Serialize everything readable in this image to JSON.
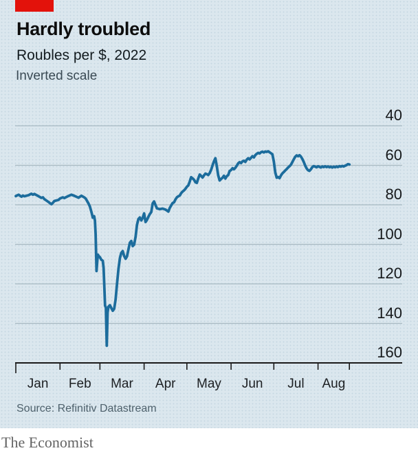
{
  "header": {
    "title": "Hardly troubled",
    "subtitle": "Roubles per $, 2022",
    "note": "Inverted scale"
  },
  "footer": {
    "source": "Source: Refinitiv Datastream",
    "brand": "The Economist"
  },
  "colors": {
    "accent_red": "#e3120b",
    "background": "#dbe7ee",
    "line": "#1c6c9c",
    "grid": "#a7b8c1",
    "axis": "#1a1a1a",
    "text_dark": "#0d0d0d",
    "text_gray": "#4e616c"
  },
  "chart_data": {
    "type": "line",
    "title": "Hardly troubled",
    "subtitle": "Roubles per $, 2022",
    "note": "Inverted scale",
    "unit": "Roubles per $",
    "grid": "horizontal",
    "legend": "none",
    "y_axis": {
      "ticks": [
        40,
        60,
        80,
        100,
        120,
        140,
        160
      ],
      "range": [
        40,
        160
      ],
      "inverted": true
    },
    "x_axis": {
      "year": 2022,
      "months": [
        "Jan",
        "Feb",
        "Mar",
        "Apr",
        "May",
        "Jun",
        "Jul",
        "Aug"
      ],
      "month_start_days": [
        1,
        32,
        60,
        91,
        121,
        152,
        182,
        213
      ],
      "end_day": 235
    },
    "series": [
      {
        "name": "Roubles per $",
        "color": "#1c6c9c",
        "points": [
          [
            1,
            75.6
          ],
          [
            2,
            75.2
          ],
          [
            3,
            74.9
          ],
          [
            4,
            75.4
          ],
          [
            5,
            75.9
          ],
          [
            6,
            75.3
          ],
          [
            7,
            75.7
          ],
          [
            10,
            75.1
          ],
          [
            11,
            74.7
          ],
          [
            12,
            74.4
          ],
          [
            13,
            74.9
          ],
          [
            14,
            74.5
          ],
          [
            17,
            75.7
          ],
          [
            18,
            76.1
          ],
          [
            19,
            76.5
          ],
          [
            20,
            76.2
          ],
          [
            21,
            77.1
          ],
          [
            24,
            78.6
          ],
          [
            25,
            79.2
          ],
          [
            26,
            79.7
          ],
          [
            27,
            79.0
          ],
          [
            28,
            78.1
          ],
          [
            31,
            77.5
          ],
          [
            32,
            76.8
          ],
          [
            34,
            76.2
          ],
          [
            35,
            76.6
          ],
          [
            38,
            75.5
          ],
          [
            40,
            74.9
          ],
          [
            42,
            75.4
          ],
          [
            45,
            76.4
          ],
          [
            46,
            75.9
          ],
          [
            47,
            75.4
          ],
          [
            49,
            76.2
          ],
          [
            50,
            76.8
          ],
          [
            52,
            79.3
          ],
          [
            53,
            80.9
          ],
          [
            54,
            83.5
          ],
          [
            55,
            86.5
          ],
          [
            56,
            85.8
          ],
          [
            56.5,
            88.0
          ],
          [
            57,
            95.0
          ],
          [
            57.6,
            113.5
          ],
          [
            58.2,
            108.0
          ],
          [
            58.6,
            105.2
          ],
          [
            59,
            105.8
          ],
          [
            60,
            106.5
          ],
          [
            61,
            107.8
          ],
          [
            62,
            108.3
          ],
          [
            62.6,
            112.0
          ],
          [
            63,
            120.0
          ],
          [
            63.6,
            131.0
          ],
          [
            64.2,
            132.0
          ],
          [
            64.8,
            151.3
          ],
          [
            65.4,
            134.5
          ],
          [
            66,
            131.5
          ],
          [
            67,
            130.8
          ],
          [
            68,
            132.2
          ],
          [
            69,
            133.6
          ],
          [
            70,
            132.6
          ],
          [
            71,
            128.0
          ],
          [
            72,
            120.0
          ],
          [
            73,
            112.5
          ],
          [
            74,
            107.0
          ],
          [
            75,
            104.3
          ],
          [
            76,
            103.4
          ],
          [
            77,
            105.9
          ],
          [
            78,
            107.3
          ],
          [
            79,
            106.1
          ],
          [
            80,
            102.6
          ],
          [
            81,
            99.2
          ],
          [
            82,
            98.3
          ],
          [
            83,
            100.9
          ],
          [
            84,
            100.1
          ],
          [
            85,
            96.2
          ],
          [
            86,
            90.2
          ],
          [
            87,
            87.2
          ],
          [
            88,
            86.4
          ],
          [
            89,
            87.9
          ],
          [
            90,
            86.6
          ],
          [
            91,
            84.3
          ],
          [
            92,
            88.7
          ],
          [
            93,
            87.6
          ],
          [
            94,
            86.1
          ],
          [
            95,
            84.7
          ],
          [
            96,
            83.7
          ],
          [
            97,
            79.3
          ],
          [
            98,
            78.3
          ],
          [
            99,
            80.1
          ],
          [
            100,
            81.8
          ],
          [
            102,
            82.2
          ],
          [
            104,
            81.9
          ],
          [
            106,
            82.4
          ],
          [
            108,
            83.4
          ],
          [
            109,
            81.6
          ],
          [
            110,
            80.3
          ],
          [
            111,
            79.1
          ],
          [
            112,
            78.7
          ],
          [
            113,
            77.3
          ],
          [
            114,
            76.2
          ],
          [
            115,
            75.7
          ],
          [
            116,
            75.3
          ],
          [
            117,
            74.1
          ],
          [
            118,
            73.3
          ],
          [
            119,
            72.7
          ],
          [
            120,
            71.9
          ],
          [
            121,
            70.9
          ],
          [
            122,
            70.2
          ],
          [
            123,
            68.2
          ],
          [
            124,
            66.0
          ],
          [
            125,
            66.6
          ],
          [
            126,
            67.3
          ],
          [
            127,
            68.6
          ],
          [
            128,
            68.9
          ],
          [
            129,
            66.6
          ],
          [
            130,
            64.7
          ],
          [
            131,
            65.4
          ],
          [
            132,
            66.2
          ],
          [
            133,
            65.1
          ],
          [
            134,
            64.2
          ],
          [
            135,
            64.5
          ],
          [
            136,
            64.9
          ],
          [
            137,
            63.9
          ],
          [
            138,
            62.3
          ],
          [
            139,
            60.1
          ],
          [
            140,
            58.0
          ],
          [
            141,
            56.4
          ],
          [
            142,
            60.6
          ],
          [
            143,
            65.1
          ],
          [
            144,
            67.7
          ],
          [
            145,
            66.9
          ],
          [
            146,
            66.3
          ],
          [
            147,
            65.3
          ],
          [
            148,
            66.7
          ],
          [
            149,
            65.5
          ],
          [
            150,
            64.9
          ],
          [
            151,
            62.9
          ],
          [
            152,
            62.4
          ],
          [
            153,
            61.5
          ],
          [
            154,
            62.0
          ],
          [
            155,
            61.3
          ],
          [
            156,
            60.2
          ],
          [
            157,
            59.0
          ],
          [
            158,
            58.4
          ],
          [
            159,
            58.9
          ],
          [
            160,
            58.0
          ],
          [
            161,
            57.7
          ],
          [
            162,
            58.3
          ],
          [
            163,
            57.1
          ],
          [
            164,
            56.4
          ],
          [
            165,
            57.0
          ],
          [
            166,
            56.2
          ],
          [
            167,
            55.4
          ],
          [
            168,
            56.0
          ],
          [
            169,
            54.9
          ],
          [
            170,
            54.2
          ],
          [
            171,
            53.7
          ],
          [
            172,
            54.0
          ],
          [
            173,
            53.4
          ],
          [
            174,
            53.1
          ],
          [
            175,
            53.5
          ],
          [
            176,
            53.0
          ],
          [
            177,
            53.2
          ],
          [
            178,
            52.9
          ],
          [
            179,
            53.4
          ],
          [
            180,
            53.9
          ],
          [
            181,
            54.4
          ],
          [
            182,
            58.1
          ],
          [
            183,
            63.6
          ],
          [
            184,
            66.3
          ],
          [
            185,
            65.9
          ],
          [
            186,
            66.5
          ],
          [
            187,
            65.1
          ],
          [
            188,
            64.1
          ],
          [
            189,
            63.4
          ],
          [
            190,
            62.6
          ],
          [
            191,
            61.9
          ],
          [
            192,
            61.1
          ],
          [
            193,
            60.5
          ],
          [
            194,
            59.7
          ],
          [
            195,
            58.3
          ],
          [
            196,
            57.0
          ],
          [
            197,
            55.7
          ],
          [
            198,
            55.0
          ],
          [
            199,
            55.4
          ],
          [
            200,
            54.9
          ],
          [
            201,
            55.6
          ],
          [
            202,
            56.8
          ],
          [
            203,
            58.3
          ],
          [
            204,
            60.1
          ],
          [
            205,
            61.6
          ],
          [
            206,
            62.5
          ],
          [
            207,
            62.8
          ],
          [
            208,
            62.0
          ],
          [
            209,
            60.9
          ],
          [
            210,
            60.4
          ],
          [
            211,
            60.7
          ],
          [
            212,
            61.0
          ],
          [
            213,
            60.5
          ],
          [
            214,
            60.8
          ],
          [
            215,
            61.1
          ],
          [
            216,
            60.6
          ],
          [
            217,
            60.9
          ],
          [
            218,
            60.5
          ],
          [
            219,
            60.9
          ],
          [
            220,
            60.6
          ],
          [
            221,
            61.0
          ],
          [
            222,
            60.7
          ],
          [
            223,
            61.1
          ],
          [
            224,
            60.7
          ],
          [
            225,
            61.0
          ],
          [
            226,
            60.6
          ],
          [
            227,
            60.9
          ],
          [
            228,
            60.4
          ],
          [
            229,
            60.7
          ],
          [
            230,
            60.3
          ],
          [
            231,
            60.6
          ],
          [
            232,
            60.2
          ],
          [
            233,
            59.9
          ],
          [
            234,
            59.4
          ],
          [
            235,
            59.6
          ]
        ]
      }
    ]
  }
}
